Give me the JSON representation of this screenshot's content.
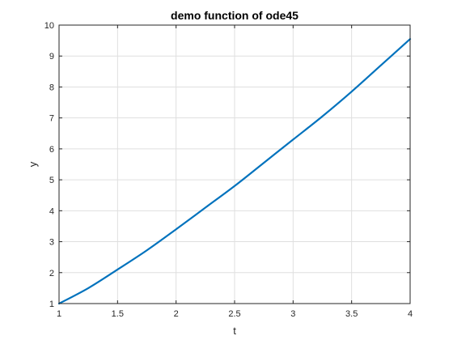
{
  "chart_data": {
    "type": "line",
    "title": "demo function of ode45",
    "xlabel": "t",
    "ylabel": "y",
    "xlim": [
      1,
      4
    ],
    "ylim": [
      1,
      10
    ],
    "xticks": [
      1,
      1.5,
      2,
      2.5,
      3,
      3.5,
      4
    ],
    "xtick_labels": [
      "1",
      "1.5",
      "2",
      "2.5",
      "3",
      "3.5",
      "4"
    ],
    "yticks": [
      1,
      2,
      3,
      4,
      5,
      6,
      7,
      8,
      9,
      10
    ],
    "ytick_labels": [
      "1",
      "2",
      "3",
      "4",
      "5",
      "6",
      "7",
      "8",
      "9",
      "10"
    ],
    "grid": true,
    "box": true,
    "series": [
      {
        "color": "#0072bd",
        "x": [
          1,
          1.25,
          1.5,
          1.75,
          2,
          2.25,
          2.5,
          2.75,
          3,
          3.25,
          3.5,
          3.75,
          4
        ],
        "y": [
          1.0,
          1.5,
          2.1,
          2.72,
          3.4,
          4.1,
          4.8,
          5.55,
          6.3,
          7.05,
          7.85,
          8.7,
          9.55
        ]
      }
    ]
  }
}
